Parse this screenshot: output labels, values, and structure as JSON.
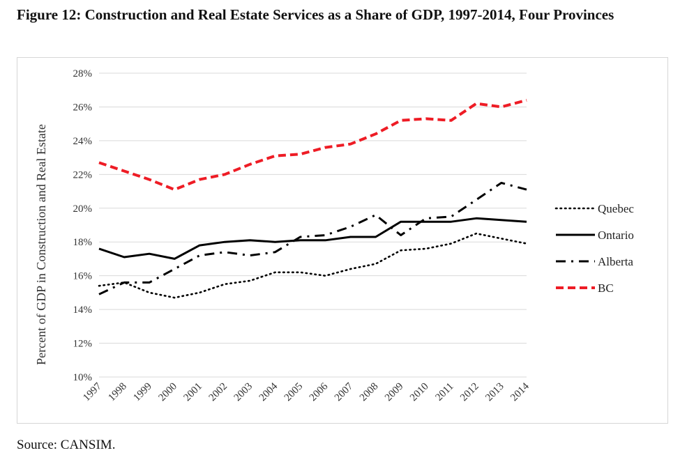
{
  "figure": {
    "title": "Figure 12: Construction and Real Estate Services as a Share of GDP, 1997-2014, Four Provinces",
    "source": "Source: CANSIM."
  },
  "chart_data": {
    "type": "line",
    "title": "Figure 12: Construction and Real Estate Services as a Share of GDP, 1997-2014, Four Provinces",
    "xlabel": "",
    "ylabel": "Percent of GDP in Construction and Real Estate",
    "ylim": [
      10,
      28
    ],
    "yticks": [
      10,
      12,
      14,
      16,
      18,
      20,
      22,
      24,
      26,
      28
    ],
    "ytick_labels": [
      "10%",
      "12%",
      "14%",
      "16%",
      "18%",
      "20%",
      "22%",
      "24%",
      "26%",
      "28%"
    ],
    "grid": true,
    "legend_position": "right",
    "categories": [
      "1997",
      "1998",
      "1999",
      "2000",
      "2001",
      "2002",
      "2003",
      "2004",
      "2005",
      "2006",
      "2007",
      "2008",
      "2009",
      "2010",
      "2011",
      "2012",
      "2013",
      "2014"
    ],
    "series": [
      {
        "name": "Quebec",
        "style": "dotted",
        "color": "#000000",
        "values": [
          15.4,
          15.6,
          15.0,
          14.7,
          15.0,
          15.5,
          15.7,
          16.2,
          16.2,
          16.0,
          16.4,
          16.7,
          17.5,
          17.6,
          17.9,
          18.5,
          18.2,
          17.9
        ]
      },
      {
        "name": "Ontario",
        "style": "solid",
        "color": "#000000",
        "values": [
          17.6,
          17.1,
          17.3,
          17.0,
          17.8,
          18.0,
          18.1,
          18.0,
          18.1,
          18.1,
          18.3,
          18.3,
          19.2,
          19.2,
          19.2,
          19.4,
          19.3,
          19.2
        ]
      },
      {
        "name": "Alberta",
        "style": "dashdot",
        "color": "#000000",
        "values": [
          14.9,
          15.6,
          15.6,
          16.4,
          17.2,
          17.4,
          17.2,
          17.4,
          18.3,
          18.4,
          18.9,
          19.6,
          18.4,
          19.4,
          19.5,
          20.5,
          21.5,
          21.1
        ]
      },
      {
        "name": "BC",
        "style": "dashed",
        "color": "#ee1c25",
        "values": [
          22.7,
          22.2,
          21.7,
          21.1,
          21.7,
          22.0,
          22.6,
          23.1,
          23.2,
          23.6,
          23.8,
          24.4,
          25.2,
          25.3,
          25.2,
          26.2,
          26.0,
          26.4
        ]
      }
    ]
  }
}
